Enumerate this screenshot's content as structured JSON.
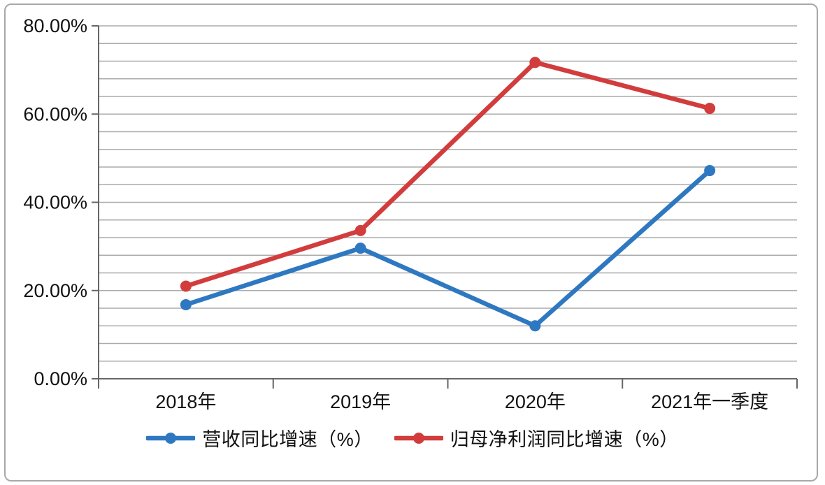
{
  "chart_data": {
    "type": "line",
    "title": "",
    "categories": [
      "2018年",
      "2019年",
      "2020年",
      "2021年一季度"
    ],
    "series": [
      {
        "name": "营收同比增速（%）",
        "color": "#2e78c2",
        "values": [
          16.8,
          29.6,
          12.0,
          47.2
        ]
      },
      {
        "name": "归母净利润同比增速（%）",
        "color": "#d23c3c",
        "values": [
          21.0,
          33.6,
          71.7,
          61.3
        ]
      }
    ],
    "ylim": [
      0,
      80
    ],
    "y_major_unit": 20,
    "y_minor_unit": 4,
    "y_tick_labels": [
      "0.00%",
      "20.00%",
      "40.00%",
      "60.00%",
      "80.00%"
    ],
    "xlabel": "",
    "ylabel": "",
    "grid": "horizontal",
    "legend_position": "bottom",
    "marker": "circle"
  },
  "colors": {
    "gridline": "#ababab",
    "axis": "#666666",
    "text": "#111111",
    "frame_border": "#a8a8a8",
    "background": "#ffffff"
  }
}
